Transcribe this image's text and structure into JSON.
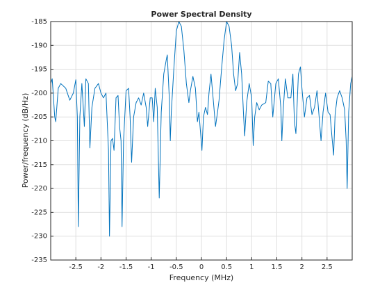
{
  "chart_data": {
    "type": "line",
    "title": "Power Spectral Density",
    "x_label": "Frequency (MHz)",
    "y_label": "Power/frequency (dB/Hz)",
    "xlim": [
      -3,
      3
    ],
    "ylim": [
      -235,
      -185
    ],
    "xticks": [
      -2.5,
      -2,
      -1.5,
      -1,
      -0.5,
      0,
      0.5,
      1,
      1.5,
      2,
      2.5
    ],
    "yticks": [
      -235,
      -230,
      -225,
      -220,
      -215,
      -210,
      -205,
      -200,
      -195,
      -190,
      -185
    ],
    "grid": true,
    "x": [
      -3.0,
      -2.97,
      -2.92,
      -2.9,
      -2.85,
      -2.8,
      -2.7,
      -2.62,
      -2.55,
      -2.5,
      -2.47,
      -2.45,
      -2.42,
      -2.38,
      -2.33,
      -2.3,
      -2.25,
      -2.22,
      -2.18,
      -2.12,
      -2.05,
      -2.0,
      -1.95,
      -1.9,
      -1.85,
      -1.83,
      -1.8,
      -1.77,
      -1.74,
      -1.7,
      -1.66,
      -1.63,
      -1.6,
      -1.58,
      -1.55,
      -1.5,
      -1.45,
      -1.42,
      -1.39,
      -1.35,
      -1.3,
      -1.25,
      -1.2,
      -1.15,
      -1.1,
      -1.07,
      -1.02,
      -0.98,
      -0.95,
      -0.92,
      -0.88,
      -0.84,
      -0.8,
      -0.75,
      -0.7,
      -0.68,
      -0.64,
      -0.62,
      -0.6,
      -0.55,
      -0.5,
      -0.45,
      -0.4,
      -0.35,
      -0.3,
      -0.25,
      -0.22,
      -0.17,
      -0.12,
      -0.08,
      -0.05,
      -0.02,
      0.01,
      0.04,
      0.08,
      0.12,
      0.15,
      0.19,
      0.24,
      0.28,
      0.32,
      0.35,
      0.4,
      0.45,
      0.5,
      0.55,
      0.6,
      0.64,
      0.68,
      0.72,
      0.76,
      0.8,
      0.84,
      0.86,
      0.9,
      0.95,
      1.0,
      1.03,
      1.06,
      1.1,
      1.15,
      1.2,
      1.28,
      1.33,
      1.38,
      1.42,
      1.48,
      1.53,
      1.58,
      1.6,
      1.63,
      1.67,
      1.72,
      1.78,
      1.82,
      1.85,
      1.88,
      1.93,
      1.97,
      2.0,
      2.05,
      2.1,
      2.15,
      2.2,
      2.25,
      2.3,
      2.35,
      2.38,
      2.42,
      2.47,
      2.52,
      2.56,
      2.6,
      2.63,
      2.66,
      2.7,
      2.75,
      2.8,
      2.85,
      2.88,
      2.9,
      2.93,
      2.97,
      3.0
    ],
    "series": [
      {
        "color": "#0072bd",
        "values": [
          -198,
          -197,
          -205,
          -206,
          -199,
          -198,
          -199,
          -201.5,
          -200,
          -197.2,
          -205,
          -228,
          -205,
          -198,
          -207,
          -197,
          -198,
          -211.5,
          -203,
          -199,
          -198,
          -200,
          -201,
          -200,
          -212,
          -230,
          -210,
          -209.5,
          -212,
          -201,
          -200.5,
          -207,
          -210,
          -228,
          -210,
          -199.5,
          -199,
          -205,
          -214.5,
          -205,
          -202,
          -201,
          -202.5,
          -200,
          -203,
          -207,
          -201,
          -201,
          -206,
          -199,
          -203,
          -222,
          -204,
          -196,
          -193,
          -192,
          -201,
          -210,
          -204,
          -195,
          -187,
          -185,
          -186,
          -191,
          -198,
          -202,
          -199.5,
          -196.5,
          -199,
          -206,
          -204,
          -208,
          -212,
          -205,
          -203,
          -204.5,
          -200,
          -196,
          -202,
          -207,
          -204,
          -201.5,
          -195,
          -189,
          -185,
          -186,
          -190,
          -196,
          -199.5,
          -198,
          -191.5,
          -196,
          -205,
          -209,
          -202,
          -198,
          -201,
          -211,
          -205,
          -202,
          -203.5,
          -202.5,
          -202,
          -197.5,
          -198,
          -205,
          -198,
          -197,
          -203,
          -210,
          -203,
          -197,
          -201,
          -201,
          -196,
          -206,
          -208.5,
          -196,
          -194.5,
          -199,
          -205,
          -201,
          -200.5,
          -204.5,
          -203,
          -199.5,
          -206,
          -210,
          -204,
          -200,
          -204,
          -204.5,
          -209.5,
          -213,
          -204.5,
          -201,
          -199.5,
          -201,
          -203.5,
          -210,
          -220,
          -204,
          -198,
          -196.5
        ]
      }
    ]
  }
}
